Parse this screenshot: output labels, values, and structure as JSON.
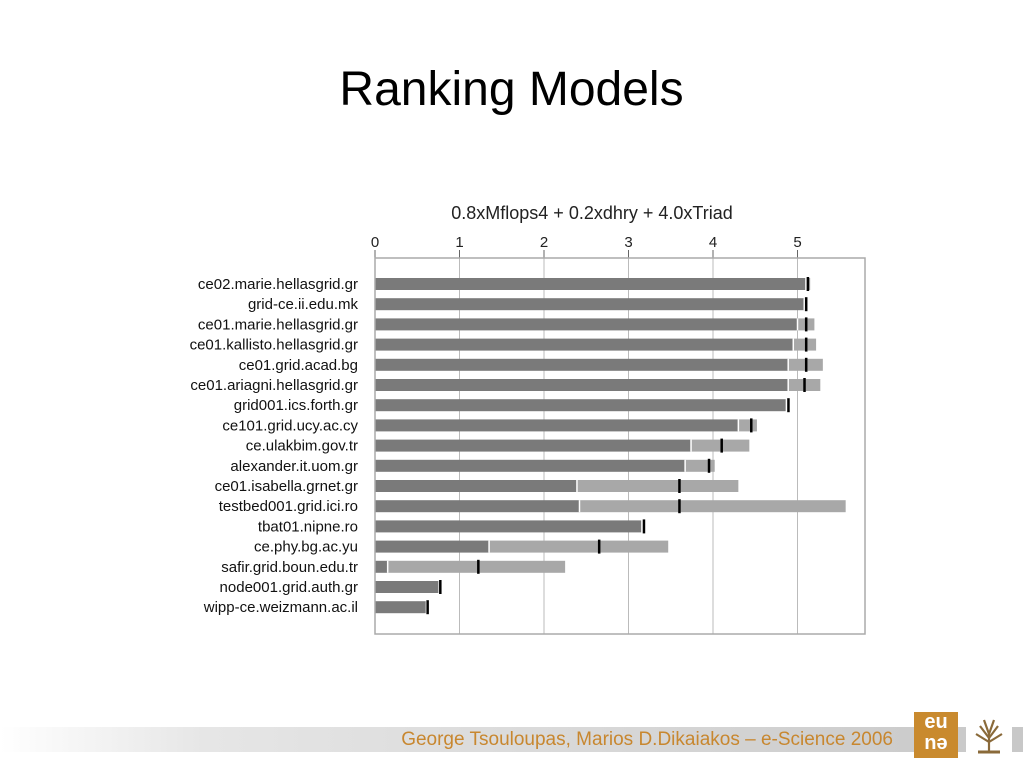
{
  "slide": {
    "title": "Ranking Models",
    "footer": "George Tsouloupas, Marios D.Dikaiakos – e-Science 2006",
    "logos": [
      "eu-logo",
      "tree-logo"
    ]
  },
  "chart_data": {
    "type": "bar",
    "orientation": "horizontal",
    "title": "0.8xMflops4 + 0.2xdhry + 4.0xTriad",
    "xlim": [
      0,
      5.8
    ],
    "xticks": [
      0,
      1,
      2,
      3,
      4,
      5
    ],
    "xaxis_position": "top",
    "grid": true,
    "colors": {
      "bar": "#7a7a7a",
      "range": "#a8a8a8",
      "marker": "#000000",
      "grid": "#bbbbbb",
      "frame": "#aaaaaa"
    },
    "categories": [
      "ce02.marie.hellasgrid.gr",
      "grid-ce.ii.edu.mk",
      "ce01.marie.hellasgrid.gr",
      "ce01.kallisto.hellasgrid.gr",
      "ce01.grid.acad.bg",
      "ce01.ariagni.hellasgrid.gr",
      "grid001.ics.forth.gr",
      "ce101.grid.ucy.ac.cy",
      "ce.ulakbim.gov.tr",
      "alexander.it.uom.gr",
      "ce01.isabella.grnet.gr",
      "testbed001.grid.ici.ro",
      "tbat01.nipne.ro",
      "ce.phy.bg.ac.yu",
      "safir.grid.boun.edu.tr",
      "node001.grid.auth.gr",
      "wipp-ce.weizmann.ac.il"
    ],
    "series": [
      {
        "values": [
          5.1,
          5.08,
          5.0,
          4.95,
          4.89,
          4.89,
          4.86,
          4.3,
          3.74,
          3.67,
          2.39,
          2.42,
          3.15,
          1.35,
          0.15,
          0.75,
          0.6
        ]
      },
      {
        "values": [
          5.12,
          5.1,
          5.1,
          5.1,
          5.1,
          5.08,
          4.89,
          4.45,
          4.1,
          3.95,
          3.6,
          3.6,
          3.18,
          2.65,
          1.22,
          0.77,
          0.62
        ]
      },
      {
        "values": [
          5.1,
          5.08,
          5.0,
          4.95,
          4.89,
          4.89,
          4.86,
          4.3,
          3.74,
          3.67,
          2.39,
          2.42,
          3.15,
          1.35,
          0.15,
          0.75,
          0.6
        ]
      },
      {
        "values": [
          5.15,
          5.1,
          5.2,
          5.22,
          5.3,
          5.27,
          4.86,
          4.52,
          4.43,
          4.02,
          4.3,
          5.57,
          3.15,
          3.47,
          2.25,
          0.75,
          0.6
        ]
      }
    ]
  }
}
